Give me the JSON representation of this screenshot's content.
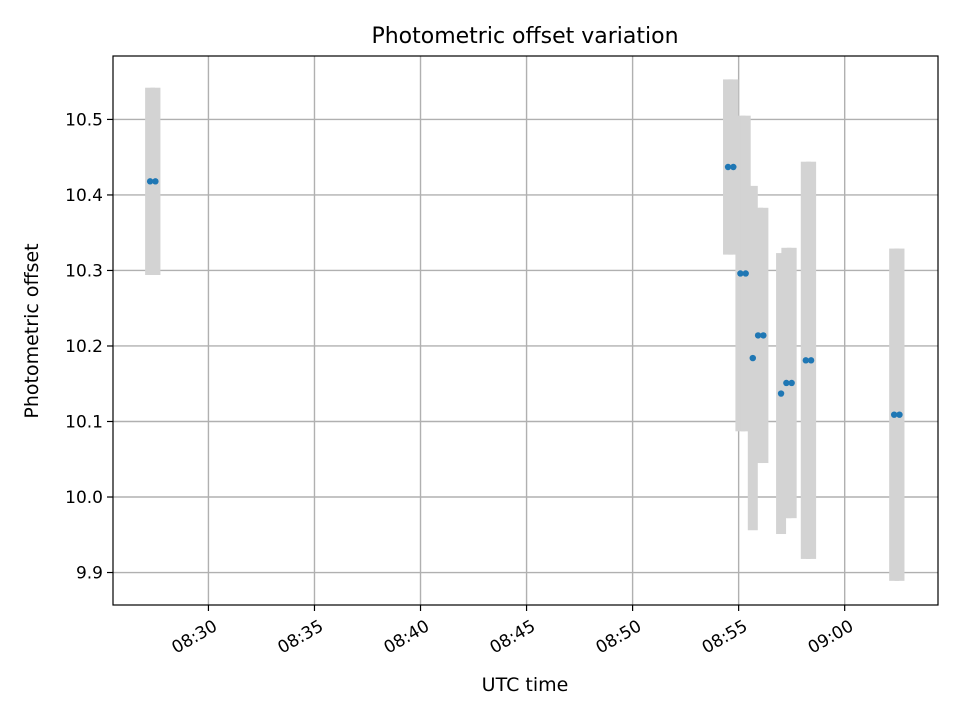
{
  "chart_data": {
    "type": "scatter",
    "title": "Photometric offset variation",
    "xlabel": "UTC time",
    "ylabel": "Photometric offset",
    "grid": true,
    "xlim": [
      "08:25:30",
      "09:04:24"
    ],
    "ylim": [
      9.857,
      10.584
    ],
    "x_ticks": [
      "08:30",
      "08:35",
      "08:40",
      "08:45",
      "08:50",
      "08:55",
      "09:00"
    ],
    "y_ticks": [
      "9.9",
      "10.0",
      "10.1",
      "10.2",
      "10.3",
      "10.4",
      "10.5"
    ],
    "colors": {
      "points": "#1f77b4",
      "error_bars": "#d3d3d3",
      "grid": "#b0b0b0"
    },
    "series": [
      {
        "points": [
          {
            "x": "08:27:15",
            "y": 10.418,
            "err": 0.124
          },
          {
            "x": "08:27:30",
            "y": 10.418,
            "err": 0.124
          },
          {
            "x": "08:54:30",
            "y": 10.437,
            "err": 0.116
          },
          {
            "x": "08:54:45",
            "y": 10.437,
            "err": 0.116
          },
          {
            "x": "08:55:05",
            "y": 10.296,
            "err": 0.209
          },
          {
            "x": "08:55:20",
            "y": 10.296,
            "err": 0.209
          },
          {
            "x": "08:55:40",
            "y": 10.184,
            "err": 0.228
          },
          {
            "x": "08:55:55",
            "y": 10.214,
            "err": 0.169
          },
          {
            "x": "08:56:10",
            "y": 10.214,
            "err": 0.169
          },
          {
            "x": "08:57:00",
            "y": 10.137,
            "err": 0.186
          },
          {
            "x": "08:57:15",
            "y": 10.151,
            "err": 0.179
          },
          {
            "x": "08:57:30",
            "y": 10.151,
            "err": 0.179
          },
          {
            "x": "08:58:10",
            "y": 10.181,
            "err": 0.263
          },
          {
            "x": "08:58:25",
            "y": 10.181,
            "err": 0.263
          },
          {
            "x": "09:02:20",
            "y": 10.109,
            "err": 0.22
          },
          {
            "x": "09:02:35",
            "y": 10.109,
            "err": 0.22
          }
        ]
      }
    ]
  }
}
